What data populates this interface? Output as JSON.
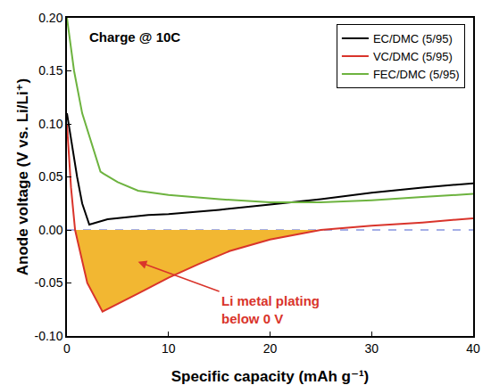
{
  "chart_data": {
    "type": "line",
    "x_label": "Specific capacity (mAh g⁻¹)",
    "y_label": "Anode voltage (V vs. Li/Li⁺)",
    "xlim": [
      0,
      40
    ],
    "xticks": [
      0,
      10,
      20,
      30,
      40
    ],
    "ylim": [
      -0.1,
      0.2
    ],
    "yticks": [
      {
        "value": -0.1,
        "label": "-0.10"
      },
      -0.05,
      {
        "value": 0,
        "label": "0.00"
      },
      0.05,
      {
        "value": 0.1,
        "label": "0.10"
      },
      0.15,
      {
        "value": 0.2,
        "label": "0.20"
      }
    ],
    "grid": false,
    "legend": "top right",
    "annotations": [
      {
        "text": "Charge @ 10C"
      },
      {
        "text": "Li metal plating\nbelow 0 V",
        "color": "#d9342b"
      }
    ],
    "hline": {
      "y": 0,
      "color": "#4a5fd0",
      "line_style": "dashed"
    },
    "series": [
      {
        "name": "EC/DMC (5/95)",
        "color": "#000000",
        "line_style": "solid",
        "x": [
          0,
          0.5,
          1,
          1.5,
          2.2,
          4,
          6,
          8,
          10,
          15,
          20,
          25,
          30,
          35,
          40
        ],
        "values": [
          0.11,
          0.08,
          0.05,
          0.025,
          0.005,
          0.01,
          0.012,
          0.014,
          0.015,
          0.019,
          0.024,
          0.029,
          0.035,
          0.04,
          0.044
        ]
      },
      {
        "name": "VC/DMC (5/95)",
        "color": "#d9342b",
        "line_style": "solid",
        "fill_below_zero": "#f2b732",
        "x": [
          0,
          0.4,
          0.8,
          2,
          3.5,
          5,
          7,
          10,
          13,
          16,
          20,
          25,
          30,
          35,
          40
        ],
        "values": [
          0.1,
          0.04,
          0,
          -0.05,
          -0.077,
          -0.07,
          -0.06,
          -0.045,
          -0.032,
          -0.02,
          -0.009,
          0,
          0.004,
          0.007,
          0.011
        ]
      },
      {
        "name": "FEC/DMC (5/95)",
        "color": "#6db33f",
        "line_style": "solid",
        "x": [
          0,
          0.7,
          1.5,
          2.5,
          3.3,
          3.6,
          5,
          7,
          10,
          15,
          20,
          25,
          30,
          35,
          40
        ],
        "values": [
          0.2,
          0.15,
          0.11,
          0.08,
          0.055,
          0.053,
          0.045,
          0.037,
          0.033,
          0.029,
          0.026,
          0.026,
          0.028,
          0.031,
          0.034
        ]
      }
    ]
  }
}
